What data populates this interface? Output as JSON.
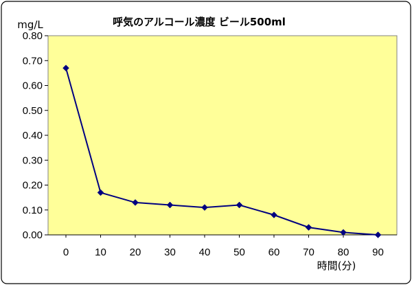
{
  "chart_data": {
    "type": "line",
    "title": "呼気のアルコール濃度 ビール500ml",
    "xlabel": "時間(分)",
    "ylabel": "mg/L",
    "x": [
      0,
      10,
      20,
      30,
      40,
      50,
      60,
      70,
      80,
      90
    ],
    "x_tick_labels": [
      "0",
      "10",
      "20",
      "30",
      "40",
      "50",
      "60",
      "70",
      "80",
      "90"
    ],
    "ylim": [
      0,
      0.8
    ],
    "y_tick_labels": [
      "0.00",
      "0.10",
      "0.20",
      "0.30",
      "0.40",
      "0.50",
      "0.60",
      "0.70",
      "0.80"
    ],
    "series": [
      {
        "values": [
          0.67,
          0.17,
          0.13,
          0.12,
          0.11,
          0.12,
          0.08,
          0.03,
          0.01,
          0.0
        ]
      }
    ],
    "grid": false,
    "legend": "none",
    "colors": {
      "plot_background": "#FFFF99",
      "line": "#000080",
      "marker": "#000080",
      "border": "#808080"
    }
  }
}
